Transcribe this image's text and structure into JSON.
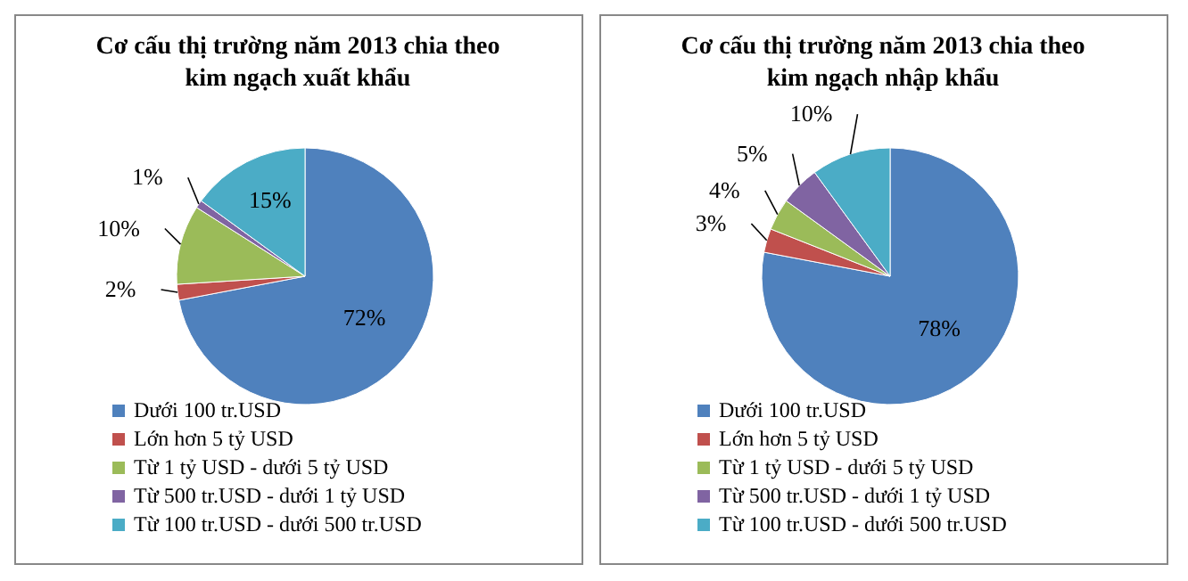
{
  "chart_data": [
    {
      "type": "pie",
      "title": "Cơ cấu thị trường năm 2013 chia theo kim ngạch xuất khẩu",
      "categories": [
        "Dưới 100 tr.USD",
        "Lớn hơn 5 tỷ USD",
        "Từ 1 tỷ USD - dưới 5 tỷ USD",
        "Từ 500 tr.USD - dưới 1 tỷ USD",
        "Từ 100 tr.USD - dưới 500 tr.USD"
      ],
      "values": [
        72,
        2,
        10,
        1,
        15
      ],
      "value_labels": [
        "72%",
        "2%",
        "10%",
        "1%",
        "15%"
      ],
      "colors": [
        "#4f81bd",
        "#c0504d",
        "#9bbb59",
        "#8064a2",
        "#4bacc6"
      ],
      "legend": "bottom"
    },
    {
      "type": "pie",
      "title": "Cơ cấu thị trường năm 2013 chia theo kim ngạch nhập khẩu",
      "categories": [
        "Dưới 100 tr.USD",
        "Lớn hơn 5 tỷ USD",
        "Từ 1 tỷ USD - dưới 5 tỷ USD",
        "Từ 500 tr.USD - dưới 1 tỷ USD",
        "Từ 100 tr.USD - dưới 500 tr.USD"
      ],
      "values": [
        78,
        3,
        4,
        5,
        10
      ],
      "value_labels": [
        "78%",
        "3%",
        "4%",
        "5%",
        "10%"
      ],
      "colors": [
        "#4f81bd",
        "#c0504d",
        "#9bbb59",
        "#8064a2",
        "#4bacc6"
      ],
      "legend": "bottom"
    }
  ]
}
